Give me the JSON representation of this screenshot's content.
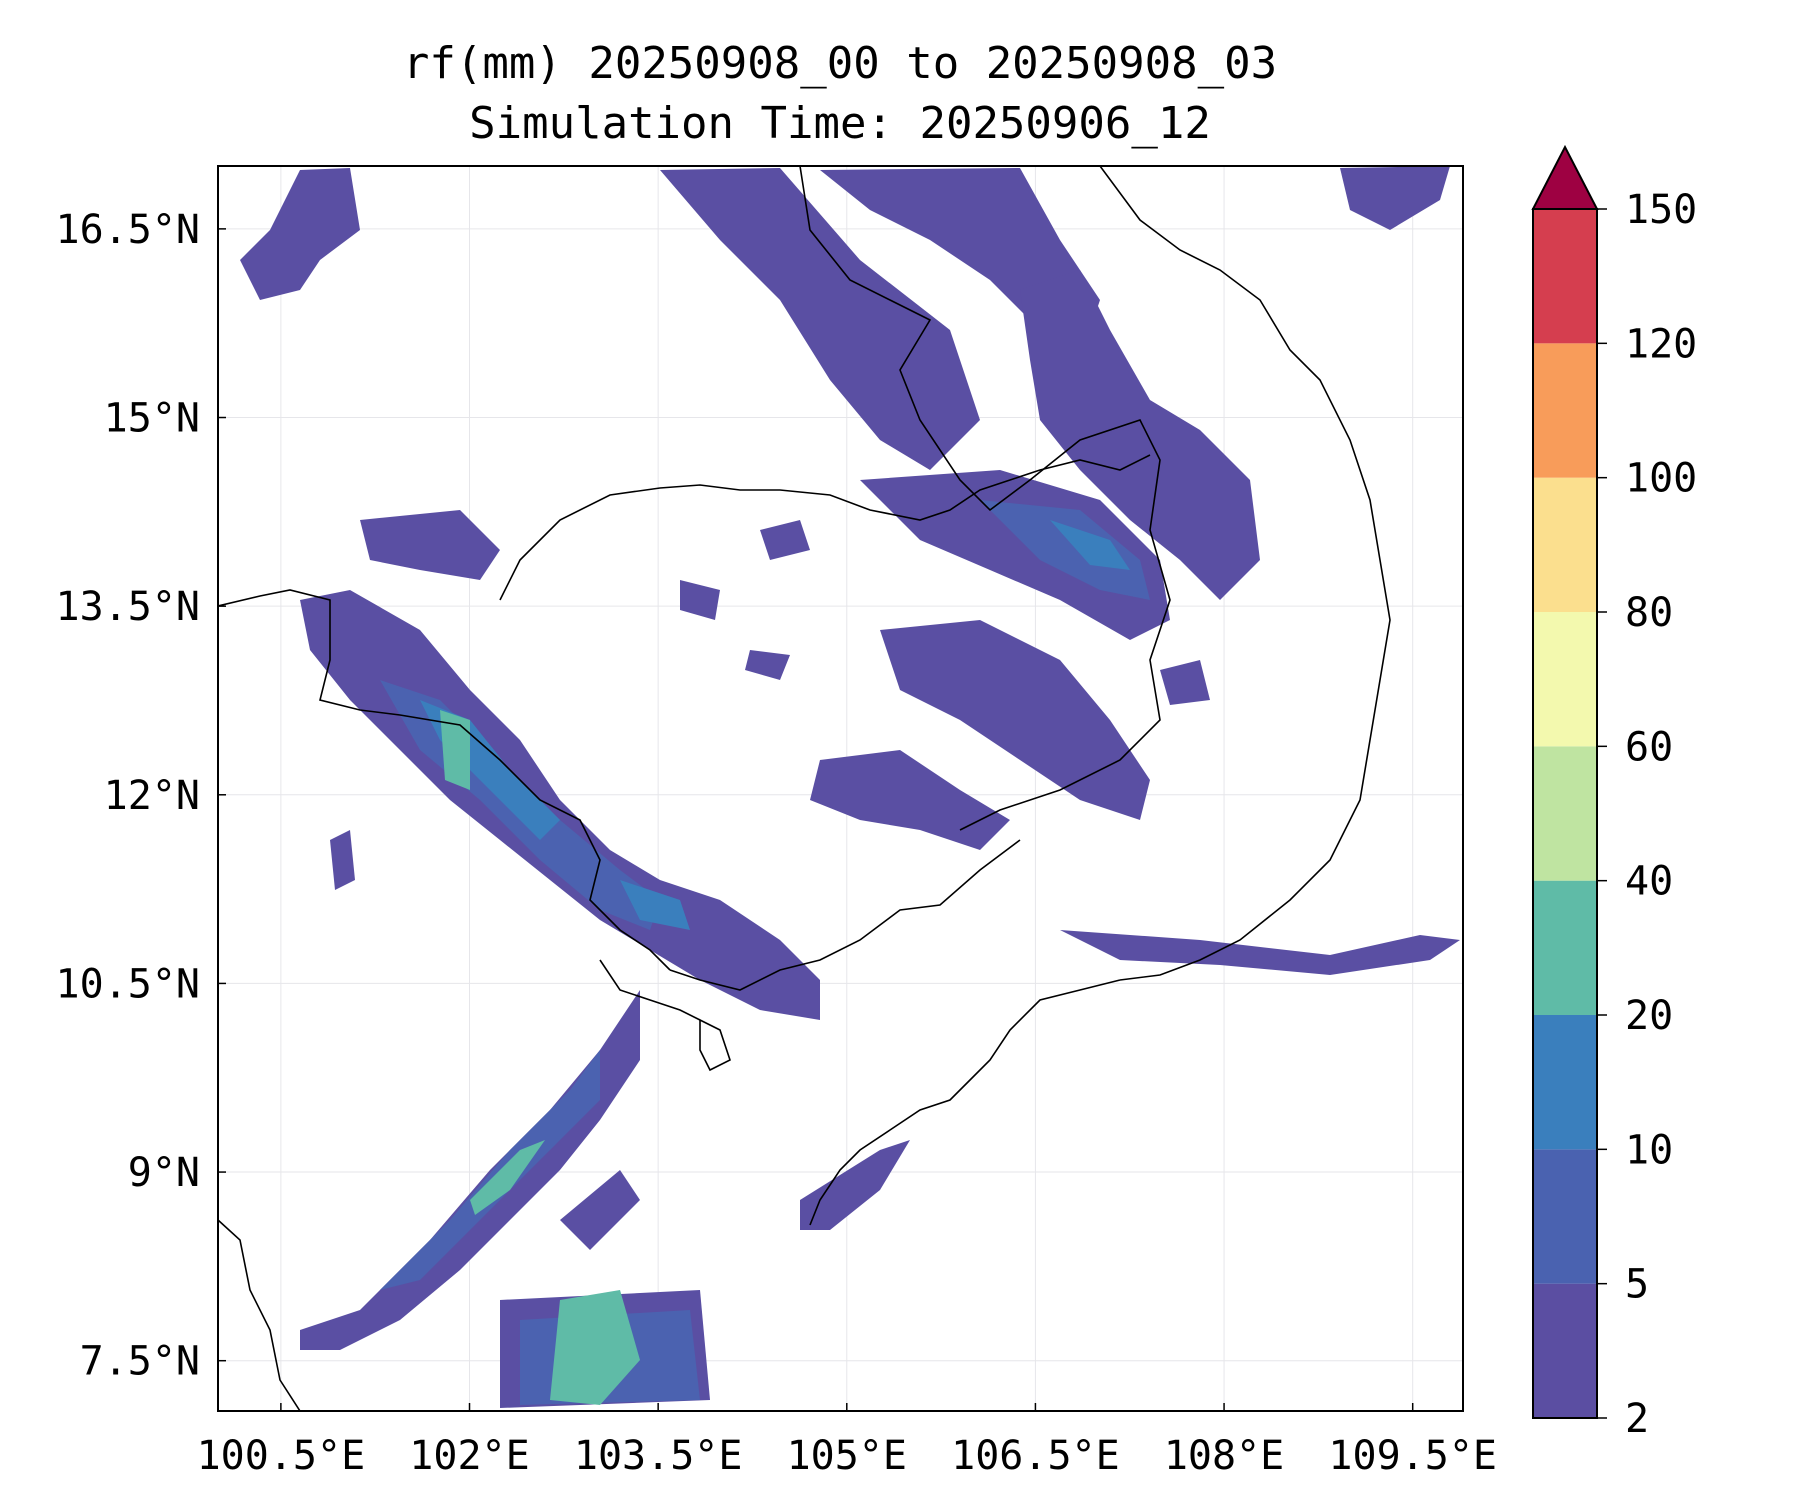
{
  "title": {
    "line1": "rf(mm) 20250908_00 to 20250908_03",
    "line2": "Simulation Time: 20250906_12"
  },
  "map": {
    "lon_range": [
      100.0,
      109.9
    ],
    "lat_range": [
      7.1,
      17.0
    ],
    "lon_ticks": [
      "100.5°E",
      "102°E",
      "103.5°E",
      "105°E",
      "106.5°E",
      "108°E",
      "109.5°E"
    ],
    "lat_ticks": [
      "16.5°N",
      "15°N",
      "13.5°N",
      "12°N",
      "10.5°N",
      "9°N",
      "7.5°N"
    ],
    "gridlines": true,
    "colors": {
      "lev_2_5": "#5a4fa3",
      "lev_5_10": "#4b62b0",
      "lev_10_20": "#3a7fbd",
      "lev_20_40": "#5fbba7",
      "lev_40_60": "#bfe4a1",
      "coastline": "#000000",
      "grid": "#e6e6ea"
    }
  },
  "colorbar": {
    "label_values": [
      "2",
      "5",
      "10",
      "20",
      "40",
      "60",
      "80",
      "100",
      "120",
      "150"
    ],
    "colors": [
      "#5b4ea2",
      "#4a62b0",
      "#3a7fbd",
      "#5fbba7",
      "#bfe4a1",
      "#f3f9ae",
      "#fbdf8e",
      "#f89c5a",
      "#d53e4f"
    ],
    "extend_color": "#9e0142"
  }
}
